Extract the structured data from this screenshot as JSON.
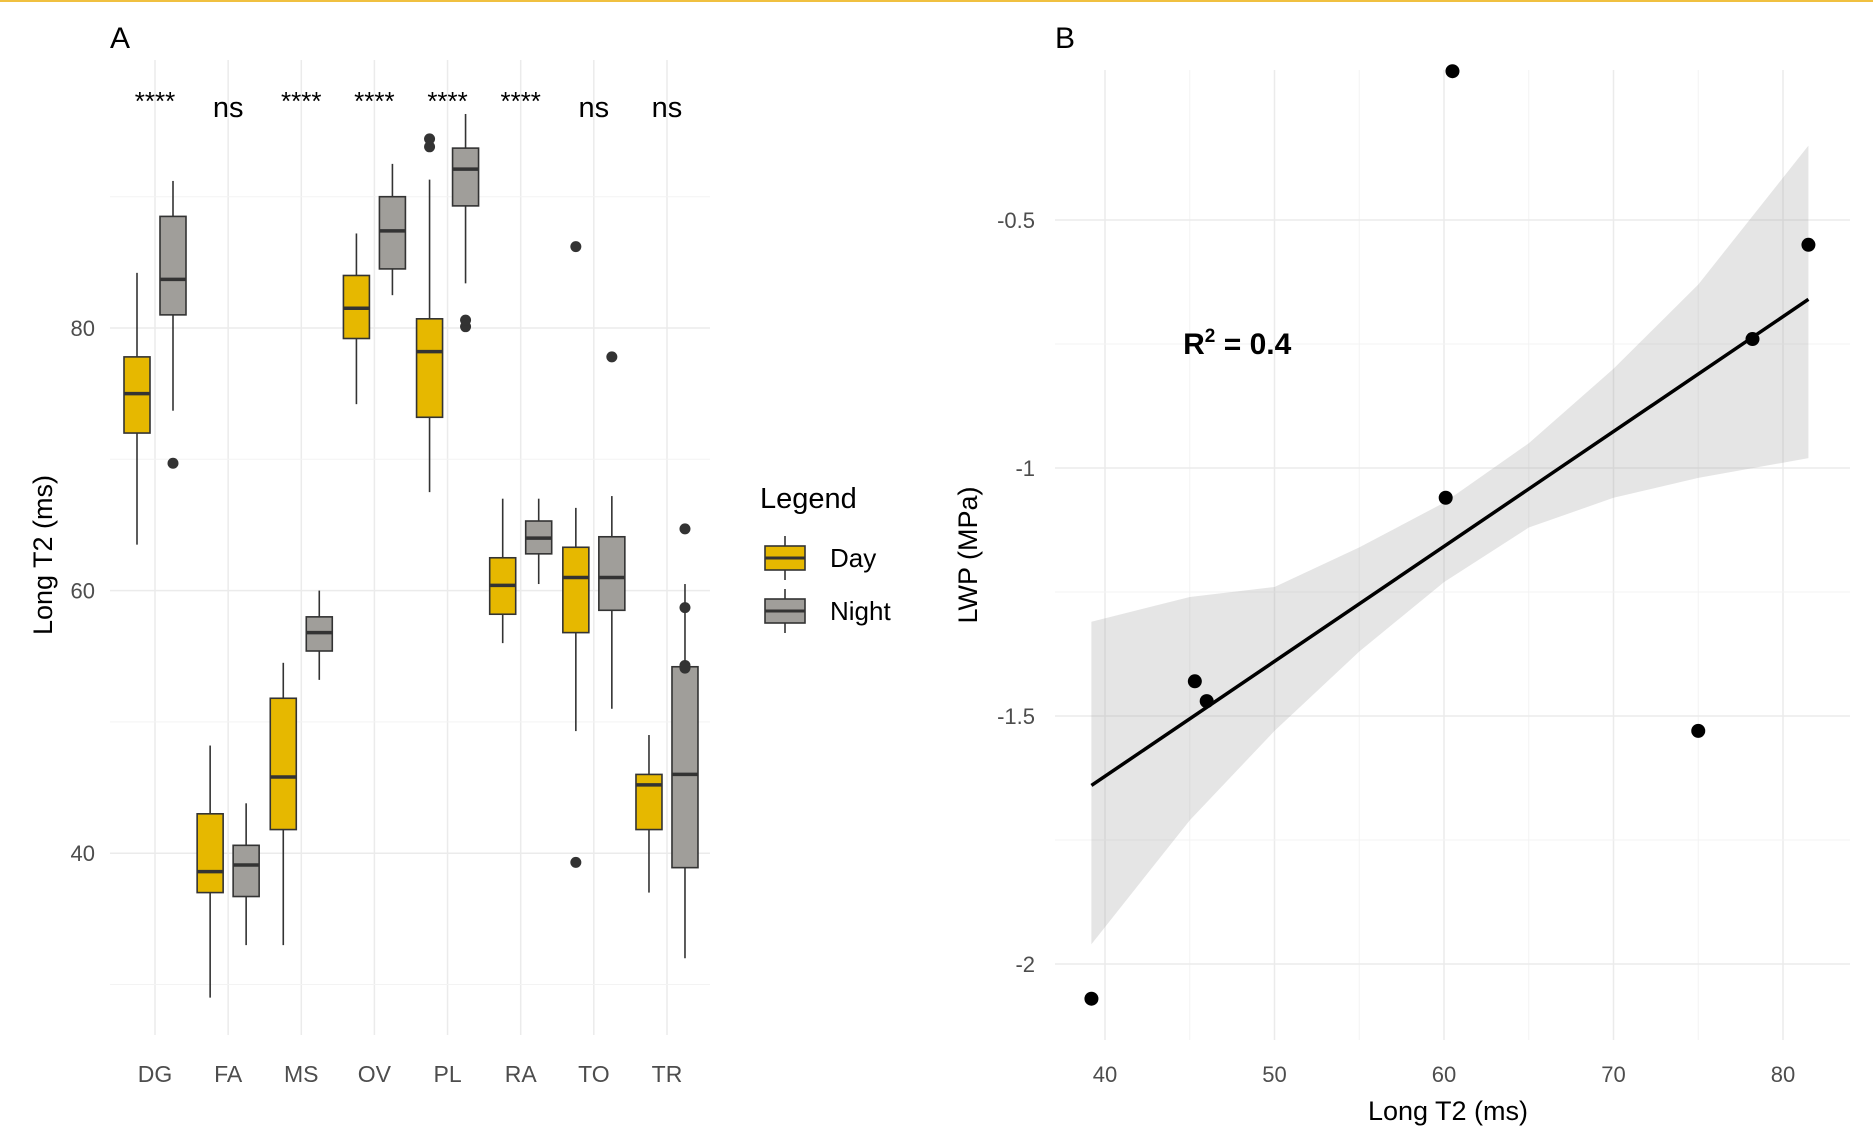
{
  "chart_data": [
    {
      "type": "box",
      "panel_label": "A",
      "categories": [
        "DG",
        "FA",
        "MS",
        "OV",
        "PL",
        "RA",
        "TO",
        "TR"
      ],
      "ylabel": "Long T2 (ms)",
      "xlabel": "",
      "ylim": [
        28,
        98
      ],
      "yticks": [
        40,
        60,
        80
      ],
      "grid": true,
      "legend": {
        "title": "Legend",
        "position": "right",
        "entries": [
          "Day",
          "Night"
        ]
      },
      "colors": {
        "Day": "#e6b800",
        "Night": "#a09e9a"
      },
      "significance": [
        "****",
        "ns",
        "****",
        "****",
        "****",
        "****",
        "ns",
        "ns"
      ],
      "series": [
        {
          "name": "Day",
          "boxes": [
            {
              "category": "DG",
              "whisker_low": 63.5,
              "q1": 72.0,
              "median": 75.0,
              "q3": 77.8,
              "whisker_high": 84.2,
              "outliers": []
            },
            {
              "category": "FA",
              "whisker_low": 29.0,
              "q1": 37.0,
              "median": 38.6,
              "q3": 43.0,
              "whisker_high": 48.2,
              "outliers": []
            },
            {
              "category": "MS",
              "whisker_low": 33.0,
              "q1": 41.8,
              "median": 45.8,
              "q3": 51.8,
              "whisker_high": 54.5,
              "outliers": []
            },
            {
              "category": "OV",
              "whisker_low": 74.2,
              "q1": 79.2,
              "median": 81.5,
              "q3": 84.0,
              "whisker_high": 87.2,
              "outliers": []
            },
            {
              "category": "PL",
              "whisker_low": 67.5,
              "q1": 73.2,
              "median": 78.2,
              "q3": 80.7,
              "whisker_high": 91.3,
              "outliers": [
                93.8,
                94.4
              ]
            },
            {
              "category": "RA",
              "whisker_low": 56.0,
              "q1": 58.2,
              "median": 60.4,
              "q3": 62.5,
              "whisker_high": 67.0,
              "outliers": []
            },
            {
              "category": "TO",
              "whisker_low": 49.3,
              "q1": 56.8,
              "median": 61.0,
              "q3": 63.3,
              "whisker_high": 66.3,
              "outliers": [
                86.2,
                39.3
              ]
            },
            {
              "category": "TR",
              "whisker_low": 37.0,
              "q1": 41.8,
              "median": 45.2,
              "q3": 46.0,
              "whisker_high": 49.0,
              "outliers": []
            }
          ]
        },
        {
          "name": "Night",
          "boxes": [
            {
              "category": "DG",
              "whisker_low": 73.7,
              "q1": 81.0,
              "median": 83.7,
              "q3": 88.5,
              "whisker_high": 91.2,
              "outliers": [
                69.7
              ]
            },
            {
              "category": "FA",
              "whisker_low": 33.0,
              "q1": 36.7,
              "median": 39.1,
              "q3": 40.6,
              "whisker_high": 43.8,
              "outliers": []
            },
            {
              "category": "MS",
              "whisker_low": 53.2,
              "q1": 55.4,
              "median": 56.8,
              "q3": 58.0,
              "whisker_high": 60.0,
              "outliers": []
            },
            {
              "category": "OV",
              "whisker_low": 82.5,
              "q1": 84.5,
              "median": 87.4,
              "q3": 90.0,
              "whisker_high": 92.5,
              "outliers": []
            },
            {
              "category": "PL",
              "whisker_low": 83.4,
              "q1": 89.3,
              "median": 92.1,
              "q3": 93.7,
              "whisker_high": 96.3,
              "outliers": [
                80.1,
                80.6
              ]
            },
            {
              "category": "RA",
              "whisker_low": 60.5,
              "q1": 62.8,
              "median": 64.0,
              "q3": 65.3,
              "whisker_high": 67.0,
              "outliers": []
            },
            {
              "category": "TO",
              "whisker_low": 51.0,
              "q1": 58.5,
              "median": 61.0,
              "q3": 64.1,
              "whisker_high": 67.2,
              "outliers": [
                77.8
              ]
            },
            {
              "category": "TR",
              "whisker_low": 32.0,
              "q1": 38.9,
              "median": 46.0,
              "q3": 54.2,
              "whisker_high": 60.5,
              "outliers": [
                64.7,
                58.7,
                54.3,
                54.1
              ]
            }
          ]
        }
      ]
    },
    {
      "type": "scatter",
      "panel_label": "B",
      "xlabel": "Long T2 (ms)",
      "ylabel": "LWP (MPa)",
      "xlim": [
        37,
        83
      ],
      "ylim": [
        -2.15,
        -0.2
      ],
      "xticks": [
        40,
        50,
        60,
        70,
        80
      ],
      "yticks": [
        -2.0,
        -1.5,
        -1.0,
        -0.5
      ],
      "grid": true,
      "points": [
        {
          "x": 39.2,
          "y": -2.07
        },
        {
          "x": 45.3,
          "y": -1.43
        },
        {
          "x": 46.0,
          "y": -1.47
        },
        {
          "x": 60.1,
          "y": -1.06
        },
        {
          "x": 60.5,
          "y": -0.2
        },
        {
          "x": 75.0,
          "y": -1.53
        },
        {
          "x": 78.2,
          "y": -0.74
        },
        {
          "x": 81.5,
          "y": -0.55
        }
      ],
      "fit_line": {
        "x": [
          39.2,
          81.5
        ],
        "y": [
          -1.64,
          -0.66
        ]
      },
      "confidence_band": {
        "x": [
          39.2,
          45,
          50,
          55,
          60,
          65,
          70,
          75,
          81.5
        ],
        "lower": [
          -1.96,
          -1.71,
          -1.53,
          -1.37,
          -1.23,
          -1.12,
          -1.06,
          -1.02,
          -0.98
        ],
        "upper": [
          -1.31,
          -1.26,
          -1.24,
          -1.16,
          -1.07,
          -0.95,
          -0.8,
          -0.63,
          -0.35
        ]
      },
      "annotation": {
        "text_main": "R",
        "text_sup": "2",
        "text_rest": " = 0.4",
        "x": 47.8,
        "y": -0.77
      }
    }
  ]
}
